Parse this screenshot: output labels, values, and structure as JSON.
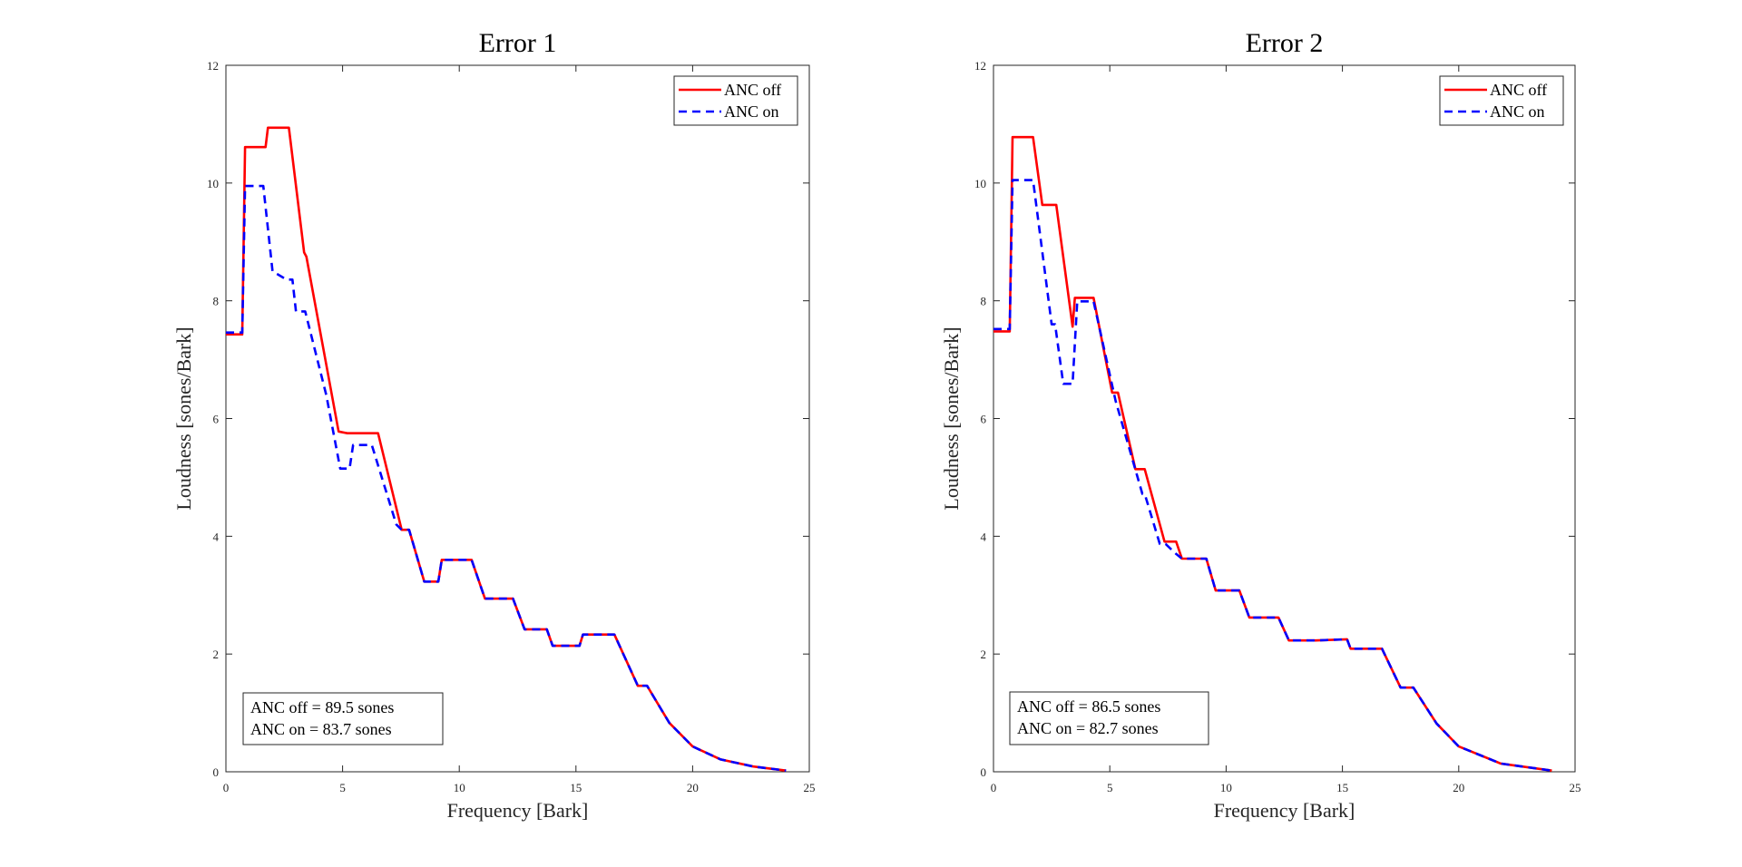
{
  "chart_data": [
    {
      "type": "line",
      "title": "Error 1",
      "xlabel": "Frequency [Bark]",
      "ylabel": "Loudness [sones/Bark]",
      "xlim": [
        0,
        25
      ],
      "ylim": [
        0,
        12
      ],
      "xticks": [
        "0",
        "5",
        "10",
        "15",
        "20",
        "25"
      ],
      "yticks": [
        "0",
        "2",
        "4",
        "6",
        "8",
        "10",
        "12"
      ],
      "grid": false,
      "legend_position": "top-right",
      "annotation": [
        "ANC off = 89.5 sones",
        "ANC on = 83.7 sones"
      ],
      "series": [
        {
          "name": "ANC off",
          "color": "#ff0000",
          "style": "solid",
          "x": [
            0,
            0.7,
            0.82,
            1.7,
            1.8,
            2.7,
            3.35,
            3.45,
            4.83,
            5.2,
            6.52,
            7.53,
            7.85,
            8.5,
            9.1,
            9.25,
            10.53,
            11.1,
            12.3,
            12.8,
            13.75,
            14.0,
            15.15,
            15.3,
            16.65,
            17.65,
            18.05,
            19.0,
            20.0,
            21.2,
            22.6,
            24.0
          ],
          "y": [
            7.43,
            7.43,
            10.61,
            10.61,
            10.94,
            10.94,
            8.82,
            8.75,
            5.78,
            5.75,
            5.75,
            4.11,
            4.11,
            3.23,
            3.23,
            3.6,
            3.6,
            2.94,
            2.94,
            2.42,
            2.42,
            2.14,
            2.14,
            2.33,
            2.33,
            1.46,
            1.46,
            0.83,
            0.43,
            0.21,
            0.09,
            0.02
          ]
        },
        {
          "name": "ANC on",
          "color": "#0000ff",
          "style": "dashed",
          "x": [
            0,
            0.7,
            0.82,
            1.6,
            2.0,
            2.6,
            2.85,
            3.0,
            3.4,
            4.3,
            4.9,
            5.3,
            5.45,
            6.25,
            7.3,
            7.53,
            7.85,
            8.5,
            9.1,
            9.25,
            10.53,
            11.1,
            12.3,
            12.8,
            13.75,
            14.0,
            15.15,
            15.3,
            16.65,
            17.65,
            18.05,
            19.0,
            20.0,
            21.2,
            22.6,
            24.0
          ],
          "y": [
            7.46,
            7.46,
            9.95,
            9.95,
            8.5,
            8.36,
            8.36,
            7.82,
            7.82,
            6.4,
            5.15,
            5.15,
            5.55,
            5.55,
            4.2,
            4.11,
            4.11,
            3.23,
            3.23,
            3.6,
            3.6,
            2.94,
            2.94,
            2.42,
            2.42,
            2.14,
            2.14,
            2.33,
            2.33,
            1.46,
            1.46,
            0.83,
            0.43,
            0.21,
            0.09,
            0.02
          ]
        }
      ]
    },
    {
      "type": "line",
      "title": "Error 2",
      "xlabel": "Frequency [Bark]",
      "ylabel": "Loudness [sones/Bark]",
      "xlim": [
        0,
        25
      ],
      "ylim": [
        0,
        12
      ],
      "xticks": [
        "0",
        "5",
        "10",
        "15",
        "20",
        "25"
      ],
      "yticks": [
        "0",
        "2",
        "4",
        "6",
        "8",
        "10",
        "12"
      ],
      "grid": false,
      "legend_position": "top-right",
      "annotation": [
        "ANC off = 86.5 sones",
        "ANC on = 82.7 sones"
      ],
      "series": [
        {
          "name": "ANC off",
          "color": "#ff0000",
          "style": "solid",
          "x": [
            0,
            0.7,
            0.82,
            1.7,
            2.1,
            2.7,
            3.4,
            3.5,
            4.3,
            5.1,
            5.35,
            6.1,
            6.5,
            7.35,
            7.85,
            8.1,
            9.15,
            9.55,
            10.57,
            11.0,
            12.25,
            12.7,
            13.85,
            15.2,
            15.35,
            16.7,
            17.5,
            18.05,
            19.05,
            20.0,
            21.8,
            24.0
          ],
          "y": [
            7.48,
            7.48,
            10.78,
            10.78,
            9.63,
            9.63,
            7.56,
            8.05,
            8.05,
            6.44,
            6.44,
            5.14,
            5.14,
            3.91,
            3.91,
            3.62,
            3.62,
            3.08,
            3.08,
            2.62,
            2.62,
            2.23,
            2.23,
            2.25,
            2.09,
            2.09,
            1.43,
            1.43,
            0.82,
            0.43,
            0.14,
            0.02
          ]
        },
        {
          "name": "ANC on",
          "color": "#0000ff",
          "style": "dashed",
          "x": [
            0,
            0.7,
            0.82,
            1.7,
            2.5,
            2.65,
            3.0,
            3.4,
            3.6,
            4.3,
            5.25,
            6.4,
            6.5,
            7.15,
            7.4,
            7.85,
            8.1,
            9.15,
            9.55,
            10.57,
            11.0,
            12.25,
            12.7,
            13.85,
            15.2,
            15.35,
            16.7,
            17.5,
            18.05,
            19.05,
            20.0,
            21.8,
            24.0
          ],
          "y": [
            7.52,
            7.52,
            10.05,
            10.05,
            7.6,
            7.6,
            6.59,
            6.59,
            7.99,
            7.99,
            6.3,
            4.72,
            4.72,
            3.87,
            3.87,
            3.7,
            3.62,
            3.62,
            3.08,
            3.08,
            2.62,
            2.62,
            2.23,
            2.23,
            2.25,
            2.09,
            2.09,
            1.43,
            1.43,
            0.82,
            0.43,
            0.14,
            0.02
          ]
        }
      ]
    }
  ]
}
